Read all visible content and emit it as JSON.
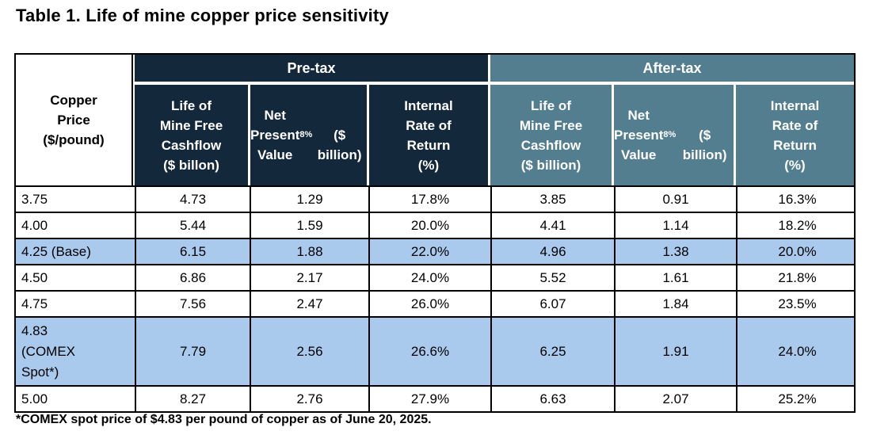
{
  "title": "Table 1. Life of mine copper price sensitivity",
  "colors": {
    "pretax_header": "#14283C",
    "aftertax_header": "#537E90",
    "highlight_row": "#A9C9ED",
    "grid_line": "#000000"
  },
  "table": {
    "corner_header": "Copper\nPrice\n($/pound)",
    "group_pretax": "Pre-tax",
    "group_aftertax": "After-tax",
    "headers": {
      "pretax_cashflow": "Life of\nMine Free\nCashflow\n($ billon)",
      "pretax_npv_main": "Net\nPresent\nValue",
      "pretax_npv_sub": "8%",
      "pretax_npv_unit": "\n($ billion)",
      "pretax_irr": "Internal\nRate of\nReturn\n(%)",
      "aftertax_cashflow": "Life of\nMine Free\nCashflow\n($ billion)",
      "aftertax_npv_main": "Net\nPresent\nValue",
      "aftertax_npv_sub": "8%",
      "aftertax_npv_unit": "\n($ billion)",
      "aftertax_irr": "Internal\nRate of\nReturn\n(%)"
    },
    "rows": [
      {
        "highlight": false,
        "cells": [
          "3.75",
          "4.73",
          "1.29",
          "17.8%",
          "3.85",
          "0.91",
          "16.3%"
        ]
      },
      {
        "highlight": false,
        "cells": [
          "4.00",
          "5.44",
          "1.59",
          "20.0%",
          "4.41",
          "1.14",
          "18.2%"
        ]
      },
      {
        "highlight": true,
        "cells": [
          "4.25 (Base)",
          "6.15",
          "1.88",
          "22.0%",
          "4.96",
          "1.38",
          "20.0%"
        ]
      },
      {
        "highlight": false,
        "cells": [
          "4.50",
          "6.86",
          "2.17",
          "24.0%",
          "5.52",
          "1.61",
          "21.8%"
        ]
      },
      {
        "highlight": false,
        "cells": [
          "4.75",
          "7.56",
          "2.47",
          "26.0%",
          "6.07",
          "1.84",
          "23.5%"
        ]
      },
      {
        "highlight": true,
        "cells": [
          "4.83\n(COMEX\nSpot*)",
          "7.79",
          "2.56",
          "26.6%",
          "6.25",
          "1.91",
          "24.0%"
        ]
      },
      {
        "highlight": false,
        "cells": [
          "5.00",
          "8.27",
          "2.76",
          "27.9%",
          "6.63",
          "2.07",
          "25.2%"
        ]
      }
    ],
    "footnote": "*COMEX spot price of $4.83 per pound of copper as of June 20, 2025."
  }
}
